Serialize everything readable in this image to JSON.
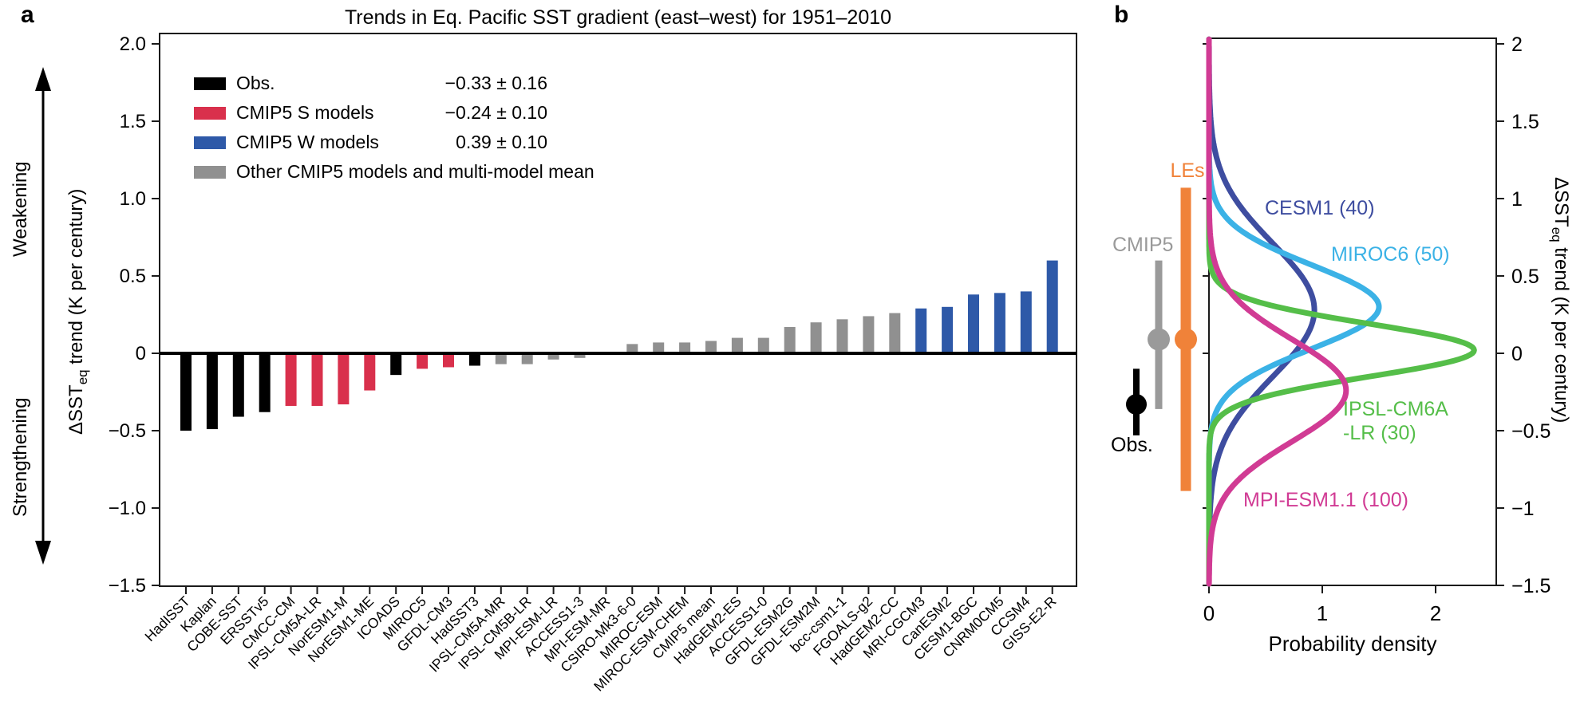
{
  "page": {
    "panel_a_letter": "a",
    "panel_b_letter": "b",
    "background": "#ffffff"
  },
  "chart_data": [
    {
      "id": "panel-a",
      "type": "bar",
      "title": "Trends in Eq. Pacific SST gradient (east–west) for 1951–2010",
      "ylabel": {
        "prefix": "ΔSST",
        "sub": "eq",
        "suffix": " trend (K per century)"
      },
      "direction_annotations": {
        "up": "Weakening",
        "down": "Strengthening"
      },
      "ylim": [
        -1.5,
        2.0
      ],
      "grid": false,
      "zero_line": true,
      "yticks": [
        {
          "v": 2,
          "label": "2.0"
        },
        {
          "v": 1.5,
          "label": "1.5"
        },
        {
          "v": 1,
          "label": "1.0"
        },
        {
          "v": 0.5,
          "label": "0.5"
        },
        {
          "v": 0,
          "label": "0"
        },
        {
          "v": -0.5,
          "label": "−0.5"
        },
        {
          "v": -1,
          "label": "−1.0"
        },
        {
          "v": -1.5,
          "label": "−1.5"
        }
      ],
      "categories": [
        "HadISST",
        "Kaplan",
        "COBE-SST",
        "ERSSTv5",
        "CMCC-CM",
        "IPSL-CM5A-LR",
        "NorESM1-M",
        "NorESM1-ME",
        "ICOADS",
        "MIROC5",
        "GFDL-CM3",
        "HadSST3",
        "IPSL-CM5A-MR",
        "IPSL-CM5B-LR",
        "MPI-ESM-LR",
        "ACCESS1-3",
        "MPI-ESM-MR",
        "CSIRO-Mk3-6-0",
        "MIROC-ESM",
        "MIROC-ESM-CHEM",
        "CMIP5 mean",
        "HadGEM2-ES",
        "ACCESS1-0",
        "GFDL-ESM2G",
        "GFDL-ESM2M",
        "bcc-csm1-1",
        "FGOALS-g2",
        "HadGEM2-CC",
        "MRI-CGCM3",
        "CanESM2",
        "CESM1-BGC",
        "CNRM0CM5",
        "CCSM4",
        "GISS-E2-R"
      ],
      "values": [
        -0.5,
        -0.49,
        -0.41,
        -0.38,
        -0.34,
        -0.34,
        -0.33,
        -0.24,
        -0.14,
        -0.1,
        -0.09,
        -0.08,
        -0.07,
        -0.07,
        -0.04,
        -0.03,
        -0.01,
        0.06,
        0.07,
        0.07,
        0.08,
        0.1,
        0.1,
        0.17,
        0.2,
        0.22,
        0.24,
        0.26,
        0.29,
        0.3,
        0.38,
        0.39,
        0.4,
        0.6
      ],
      "bar_color_keys": [
        "obs",
        "obs",
        "obs",
        "obs",
        "s",
        "s",
        "s",
        "s",
        "obs",
        "s",
        "s",
        "obs",
        "other",
        "other",
        "other",
        "other",
        "other",
        "other",
        "other",
        "other",
        "other",
        "other",
        "other",
        "other",
        "other",
        "other",
        "other",
        "other",
        "w",
        "w",
        "w",
        "w",
        "w",
        "w"
      ],
      "color_map": {
        "obs": "#000000",
        "s": "#D9304C",
        "w": "#2E59A8",
        "other": "#909090"
      },
      "legend": {
        "position": "upper-left",
        "items": [
          {
            "key": "obs",
            "color": "#000000",
            "label": "Obs.",
            "value": "−0.33 ± 0.16"
          },
          {
            "key": "s",
            "color": "#D9304C",
            "label": "CMIP5 S models",
            "value": "−0.24 ± 0.10"
          },
          {
            "key": "w",
            "color": "#2E59A8",
            "label": "CMIP5 W models",
            "value": "0.39 ± 0.10"
          },
          {
            "key": "other",
            "color": "#909090",
            "label": "Other CMIP5 models and multi-model mean",
            "value": ""
          }
        ]
      }
    },
    {
      "id": "panel-b",
      "type": "line",
      "subtype": "probability-density-curves",
      "xlabel": "Probability density",
      "xlim": [
        0,
        2.53
      ],
      "xticks": [
        {
          "v": 0,
          "label": "0"
        },
        {
          "v": 1,
          "label": "1"
        },
        {
          "v": 2,
          "label": "2"
        }
      ],
      "ylim": [
        -1.5,
        2.0
      ],
      "yticks": [
        {
          "v": 2,
          "label": "2"
        },
        {
          "v": 1.5,
          "label": "1.5"
        },
        {
          "v": 1,
          "label": "1"
        },
        {
          "v": 0.5,
          "label": "0.5"
        },
        {
          "v": 0,
          "label": "0"
        },
        {
          "v": -0.5,
          "label": "−0.5"
        },
        {
          "v": -1,
          "label": "−1"
        },
        {
          "v": -1.5,
          "label": "−1.5"
        }
      ],
      "ylabel": {
        "prefix": "ΔSST",
        "sub": "eq",
        "suffix": " trend (K per century)"
      },
      "series": [
        {
          "name": "CESM1 (40)",
          "mean": 0.28,
          "sigma": 0.43,
          "peak_density": 0.93,
          "color": "#3E4DA0"
        },
        {
          "name": "MIROC6 (50)",
          "mean": 0.3,
          "sigma": 0.27,
          "peak_density": 1.5,
          "color": "#3BB2E6"
        },
        {
          "name": "IPSL-CM6A-LR (30)",
          "label_lines": [
            "IPSL-CM6A",
            "-LR (30)"
          ],
          "mean": 0.02,
          "sigma": 0.17,
          "peak_density": 2.34,
          "color": "#55BE49"
        },
        {
          "name": "MPI-ESM1.1 (100)",
          "mean": -0.24,
          "sigma": 0.33,
          "peak_density": 1.21,
          "color": "#D13B94"
        }
      ],
      "markers": [
        {
          "name": "Obs.",
          "color": "#000000",
          "dot": -0.33,
          "range": [
            -0.53,
            -0.1
          ]
        },
        {
          "name": "CMIP5",
          "color": "#9A9A9A",
          "dot": 0.09,
          "range": [
            -0.36,
            0.6
          ]
        },
        {
          "name": "LEs",
          "color": "#F08239",
          "dot": 0.09,
          "range": [
            -0.89,
            1.07
          ]
        }
      ]
    }
  ]
}
